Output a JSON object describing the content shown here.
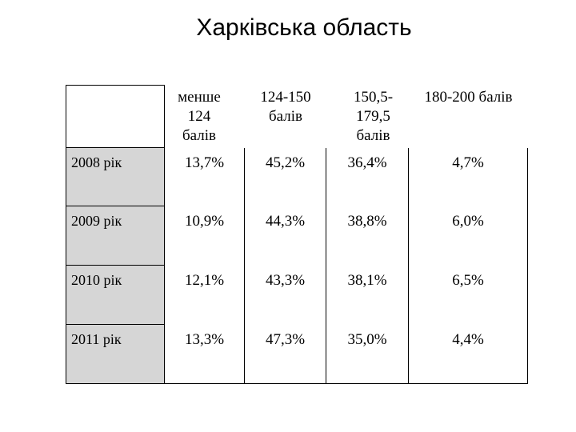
{
  "title": "Харківська область",
  "table": {
    "columns": [
      [
        "менше",
        "124",
        "балів"
      ],
      [
        "124-150",
        "балів"
      ],
      [
        "150,5-",
        "179,5",
        "балів"
      ],
      [
        "180-200 балів"
      ]
    ],
    "rows": [
      {
        "label": "2008 рік",
        "values": [
          "13,7%",
          "45,2%",
          "36,4%",
          "4,7%"
        ]
      },
      {
        "label": "2009 рік",
        "values": [
          "10,9%",
          "44,3%",
          "38,8%",
          "6,0%"
        ]
      },
      {
        "label": "2010 рік",
        "values": [
          "12,1%",
          "43,3%",
          "38,1%",
          "6,5%"
        ]
      },
      {
        "label": "2011 рік",
        "values": [
          "13,3%",
          "47,3%",
          "35,0%",
          "4,4%"
        ]
      }
    ]
  }
}
